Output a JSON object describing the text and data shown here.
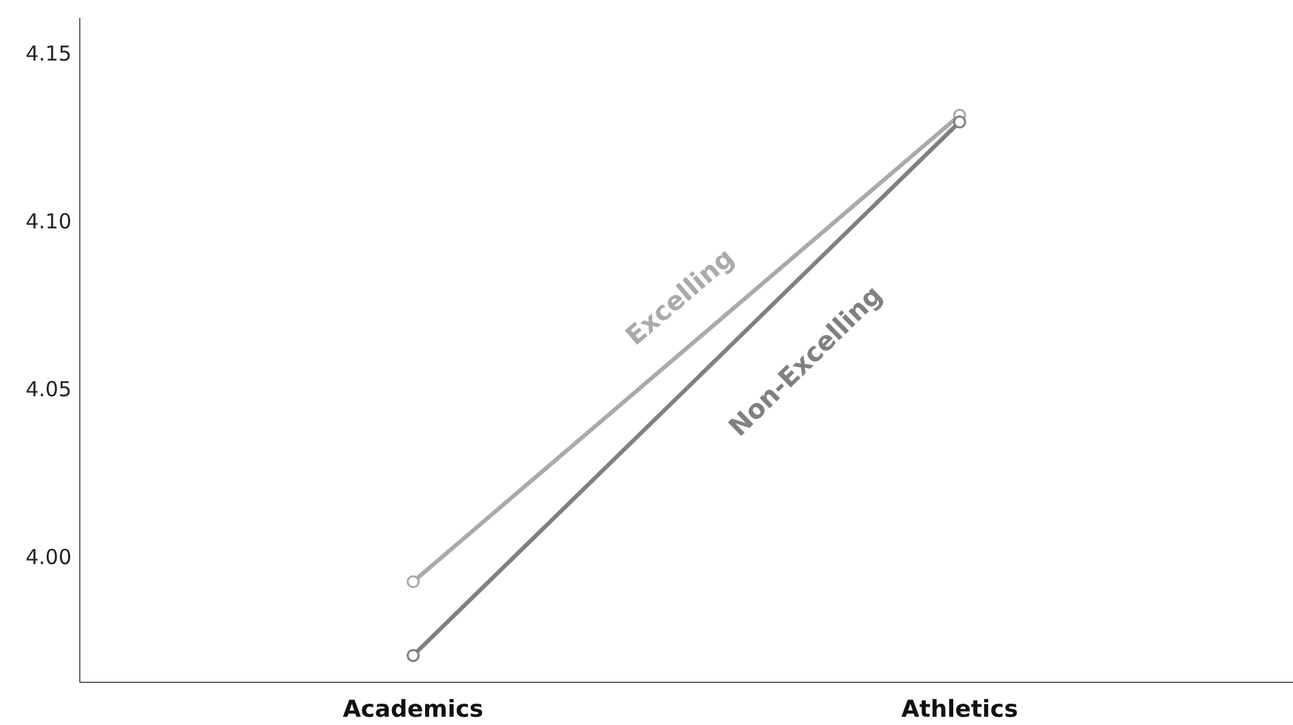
{
  "chart_data": {
    "type": "line",
    "categories": [
      "Academics",
      "Athletics"
    ],
    "series": [
      {
        "name": "Excelling",
        "color": "#aaaaaa",
        "values": [
          3.993,
          4.132
        ]
      },
      {
        "name": "Non-Excelling",
        "color": "#808080",
        "values": [
          3.971,
          4.13
        ]
      }
    ],
    "ylim": [
      3.963,
      4.161
    ],
    "yticks": [
      {
        "value": 4.0,
        "label": "4.00"
      },
      {
        "value": 4.05,
        "label": "4.05"
      },
      {
        "value": 4.1,
        "label": "4.10"
      },
      {
        "value": 4.15,
        "label": "4.15"
      }
    ],
    "marker": "circle",
    "line_style": "solid"
  }
}
